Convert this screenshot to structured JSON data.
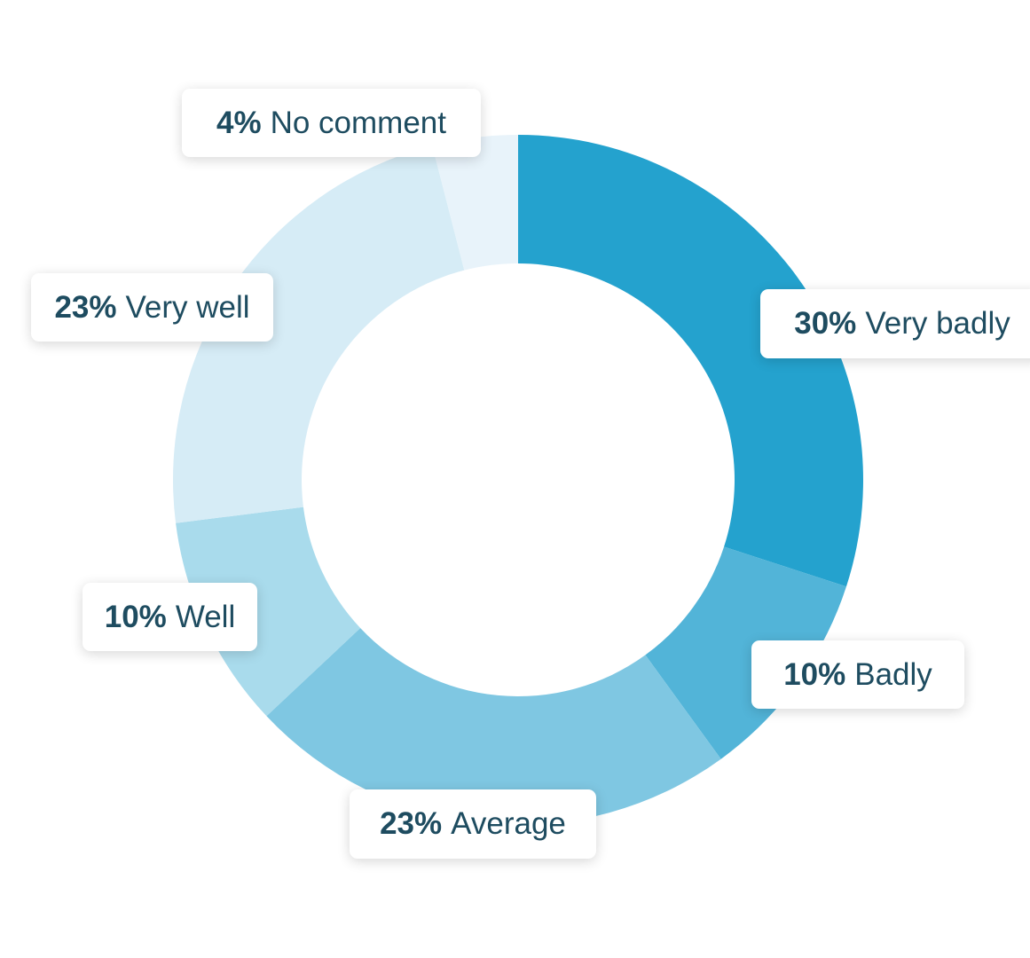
{
  "chart_data": {
    "type": "pie",
    "donut": true,
    "title": "",
    "slices": [
      {
        "label": "Very badly",
        "percent": "30%",
        "value": 30,
        "color": "#24a2ce"
      },
      {
        "label": "Badly",
        "percent": "10%",
        "value": 10,
        "color": "#52b4d8"
      },
      {
        "label": "Average",
        "percent": "23%",
        "value": 23,
        "color": "#7fc7e2"
      },
      {
        "label": "Well",
        "percent": "10%",
        "value": 10,
        "color": "#a9dbec"
      },
      {
        "label": "Very well",
        "percent": "23%",
        "value": 23,
        "color": "#d6ecf6"
      },
      {
        "label": "No comment",
        "percent": "4%",
        "value": 4,
        "color": "#e8f3fa"
      }
    ]
  }
}
